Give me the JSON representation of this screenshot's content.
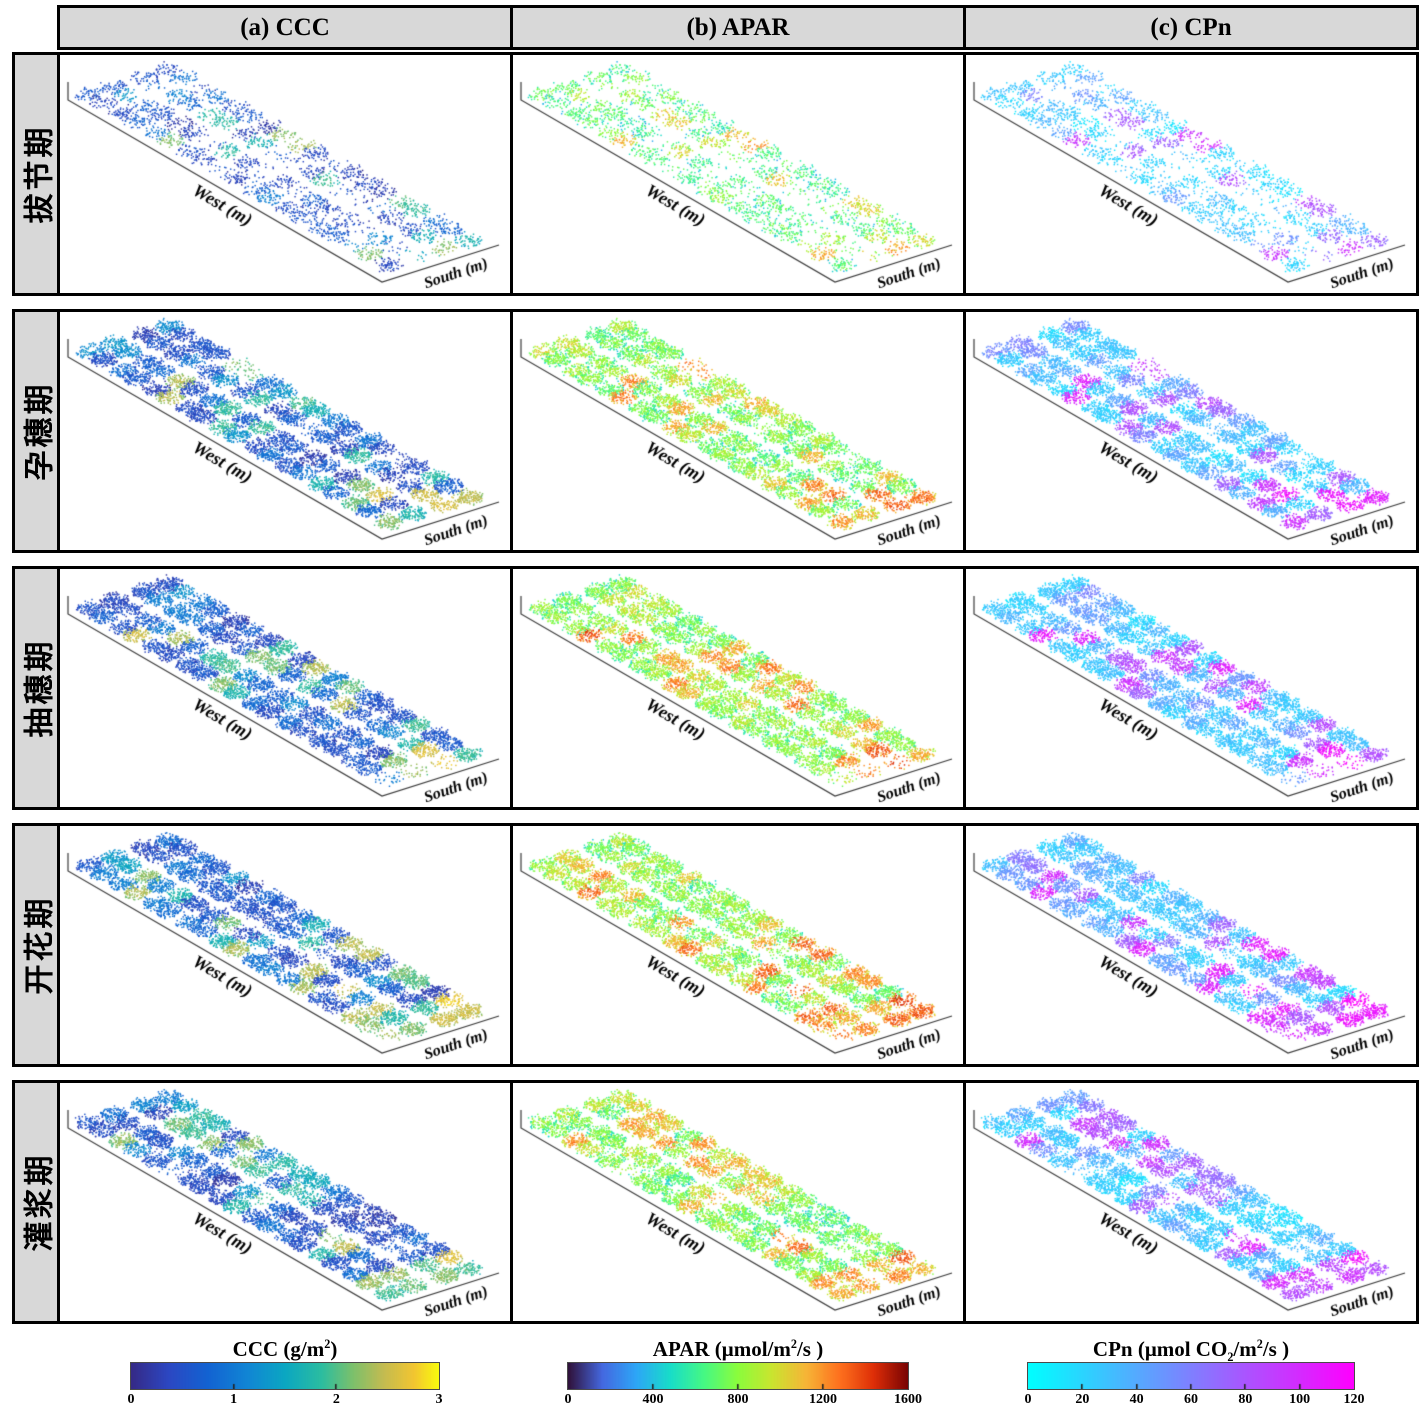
{
  "figure": {
    "background": "#ffffff",
    "cell_background": "#d8d8d8",
    "border_color": "#000000",
    "axis_line_color": "#3a3a3a"
  },
  "chart_data": {
    "type": "scatter",
    "description": "Grid of 3D point-cloud field maps: five wheat growth stages (rows, Chinese labels) by three variables (columns a-c: CCC, APAR, CPn). Each panel shows a long diagonal strip of crop plots colored by the variable; colorbars at bottom give the value ranges.",
    "axes": {
      "west": "West (m)",
      "south": "South (m)"
    },
    "columns": [
      {
        "key": "CCC",
        "header": "(a) CCC",
        "colormap": "parula",
        "range": [
          0,
          3
        ],
        "render": {
          "tBase": 0.13,
          "tScale": 0.7,
          "noise": 0.1,
          "edge": 0.1
        }
      },
      {
        "key": "APAR",
        "header": "(b) APAR",
        "colormap": "turbo",
        "range": [
          0,
          1600
        ],
        "render": {
          "tBase": 0.46,
          "tScale": 0.34,
          "noise": 0.12,
          "edge": 0.22
        }
      },
      {
        "key": "CPn",
        "header": "(c) CPn",
        "colormap": "cool",
        "range": [
          0,
          120
        ],
        "render": {
          "tBase": 0.18,
          "tScale": 0.72,
          "noise": 0.08,
          "edge": 0.12
        }
      }
    ],
    "rows": [
      {
        "label": "拔节期",
        "render": {
          "density": 0.42,
          "hotspot": 0.1,
          "mid": 0.3,
          "sparse": 0.25,
          "right": {
            "p": 0.55,
            "lo": 0.55,
            "hi": 0.9
          },
          "dBase": [
            -0.02,
            -0.06,
            -0.03
          ]
        }
      },
      {
        "label": "孕穗期",
        "render": {
          "density": 0.95,
          "hotspot": 0.16,
          "mid": 0.45,
          "sparse": 0.06,
          "right": {
            "p": 0.8,
            "lo": 0.7,
            "hi": 1.12
          },
          "dBase": [
            0,
            0,
            0
          ]
        }
      },
      {
        "label": "抽穗期",
        "render": {
          "density": 1.0,
          "hotspot": 0.22,
          "mid": 0.5,
          "sparse": 0.05,
          "right": {
            "p": 0.85,
            "lo": 0.72,
            "hi": 1.12
          },
          "dBase": [
            0.01,
            0.03,
            0.01
          ]
        }
      },
      {
        "label": "开花期",
        "render": {
          "density": 1.0,
          "hotspot": 0.24,
          "mid": 0.5,
          "sparse": 0.05,
          "right": {
            "p": 0.85,
            "lo": 0.72,
            "hi": 1.15
          },
          "dBase": [
            0.01,
            0.03,
            0.02
          ]
        }
      },
      {
        "label": "灌浆期",
        "render": {
          "density": 1.0,
          "hotspot": 0.17,
          "mid": 0.45,
          "sparse": 0.06,
          "right": {
            "p": 0.8,
            "lo": 0.7,
            "hi": 1.1
          },
          "dBase": [
            0,
            0.01,
            0
          ]
        }
      }
    ],
    "colorbars": [
      {
        "colormap": "parula",
        "parts": [
          {
            "text": "CCC (g/m"
          },
          {
            "text": "2"
          },
          {
            "text": ")"
          }
        ],
        "ticks": [
          "0",
          "1",
          "2",
          "3"
        ]
      },
      {
        "colormap": "turbo",
        "parts": [
          {
            "text": "APAR (μmol/m"
          },
          {
            "text": "2"
          },
          {
            "text": "/s )"
          }
        ],
        "ticks": [
          "0",
          "400",
          "800",
          "1200",
          "1600"
        ]
      },
      {
        "colormap": "cool",
        "parts": [
          {
            "text": "CPn (μmol CO"
          },
          {
            "text": "2"
          },
          {
            "text": "/m"
          },
          {
            "text": "2"
          },
          {
            "text": "/s )"
          }
        ],
        "ticks": [
          "0",
          "20",
          "40",
          "60",
          "80",
          "100",
          "120"
        ]
      }
    ],
    "colormaps": {
      "parula": [
        [
          0,
          "#352a87"
        ],
        [
          0.12,
          "#2c47c2"
        ],
        [
          0.25,
          "#1263d2"
        ],
        [
          0.38,
          "#1186d4"
        ],
        [
          0.5,
          "#0ba7c2"
        ],
        [
          0.62,
          "#2cbda0"
        ],
        [
          0.72,
          "#7bc06c"
        ],
        [
          0.82,
          "#c3bb51"
        ],
        [
          0.92,
          "#f2c531"
        ],
        [
          1,
          "#f9fb0e"
        ]
      ],
      "turbo": [
        [
          0,
          "#30123b"
        ],
        [
          0.1,
          "#4468e0"
        ],
        [
          0.2,
          "#2da6f7"
        ],
        [
          0.3,
          "#18ddc9"
        ],
        [
          0.4,
          "#46f884"
        ],
        [
          0.5,
          "#8bfc3c"
        ],
        [
          0.6,
          "#cae52f"
        ],
        [
          0.7,
          "#f6b537"
        ],
        [
          0.8,
          "#fe711e"
        ],
        [
          0.9,
          "#de2e07"
        ],
        [
          1,
          "#7a0403"
        ]
      ],
      "cool": [
        [
          0,
          "#00ffff"
        ],
        [
          1,
          "#ff00ff"
        ]
      ]
    },
    "render": {
      "seed": 4242,
      "grid": {
        "nL": 19,
        "nW": 4,
        "pairGap": 0.42,
        "midGapV": 0.28,
        "ru": 0.6,
        "rv": 0.48
      },
      "dot": {
        "perPatch": 130,
        "size": 1.45,
        "lift": 6
      }
    }
  }
}
